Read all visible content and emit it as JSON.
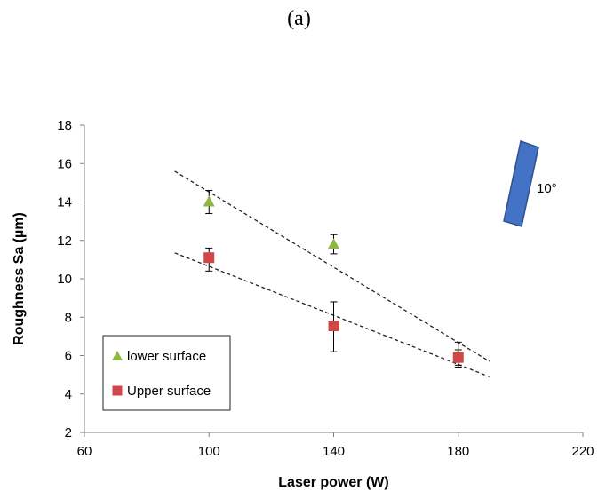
{
  "figure_label": "(a)",
  "chart_data": {
    "type": "scatter",
    "xlabel": "Laser power (W)",
    "ylabel": "Roughness  Sa (µm)",
    "xlim": [
      60,
      220
    ],
    "ylim": [
      2,
      18
    ],
    "xticks": [
      60,
      100,
      140,
      180,
      220
    ],
    "yticks": [
      2,
      4,
      6,
      8,
      10,
      12,
      14,
      16,
      18
    ],
    "grid": false,
    "legend_position": "bottom-left",
    "series": [
      {
        "name": "lower surface",
        "marker": "triangle",
        "color": "#8DB842",
        "x": [
          100,
          140,
          180
        ],
        "y": [
          14.0,
          11.8,
          6.0
        ],
        "err_low": [
          0.6,
          0.5,
          0.6
        ],
        "err_high": [
          0.6,
          0.5,
          0.7
        ],
        "trendline": {
          "x": [
            89,
            190
          ],
          "y": [
            15.6,
            5.7
          ]
        }
      },
      {
        "name": "Upper surface",
        "marker": "square",
        "color": "#D14646",
        "x": [
          100,
          140,
          180
        ],
        "y": [
          11.1,
          7.55,
          5.9
        ],
        "err_low": [
          0.7,
          1.35,
          0.4
        ],
        "err_high": [
          0.5,
          1.25,
          0.4
        ],
        "trendline": {
          "x": [
            89,
            190
          ],
          "y": [
            11.35,
            4.9
          ]
        }
      }
    ],
    "annotation": {
      "text": "10°",
      "shape_color": "#4472C4"
    }
  }
}
